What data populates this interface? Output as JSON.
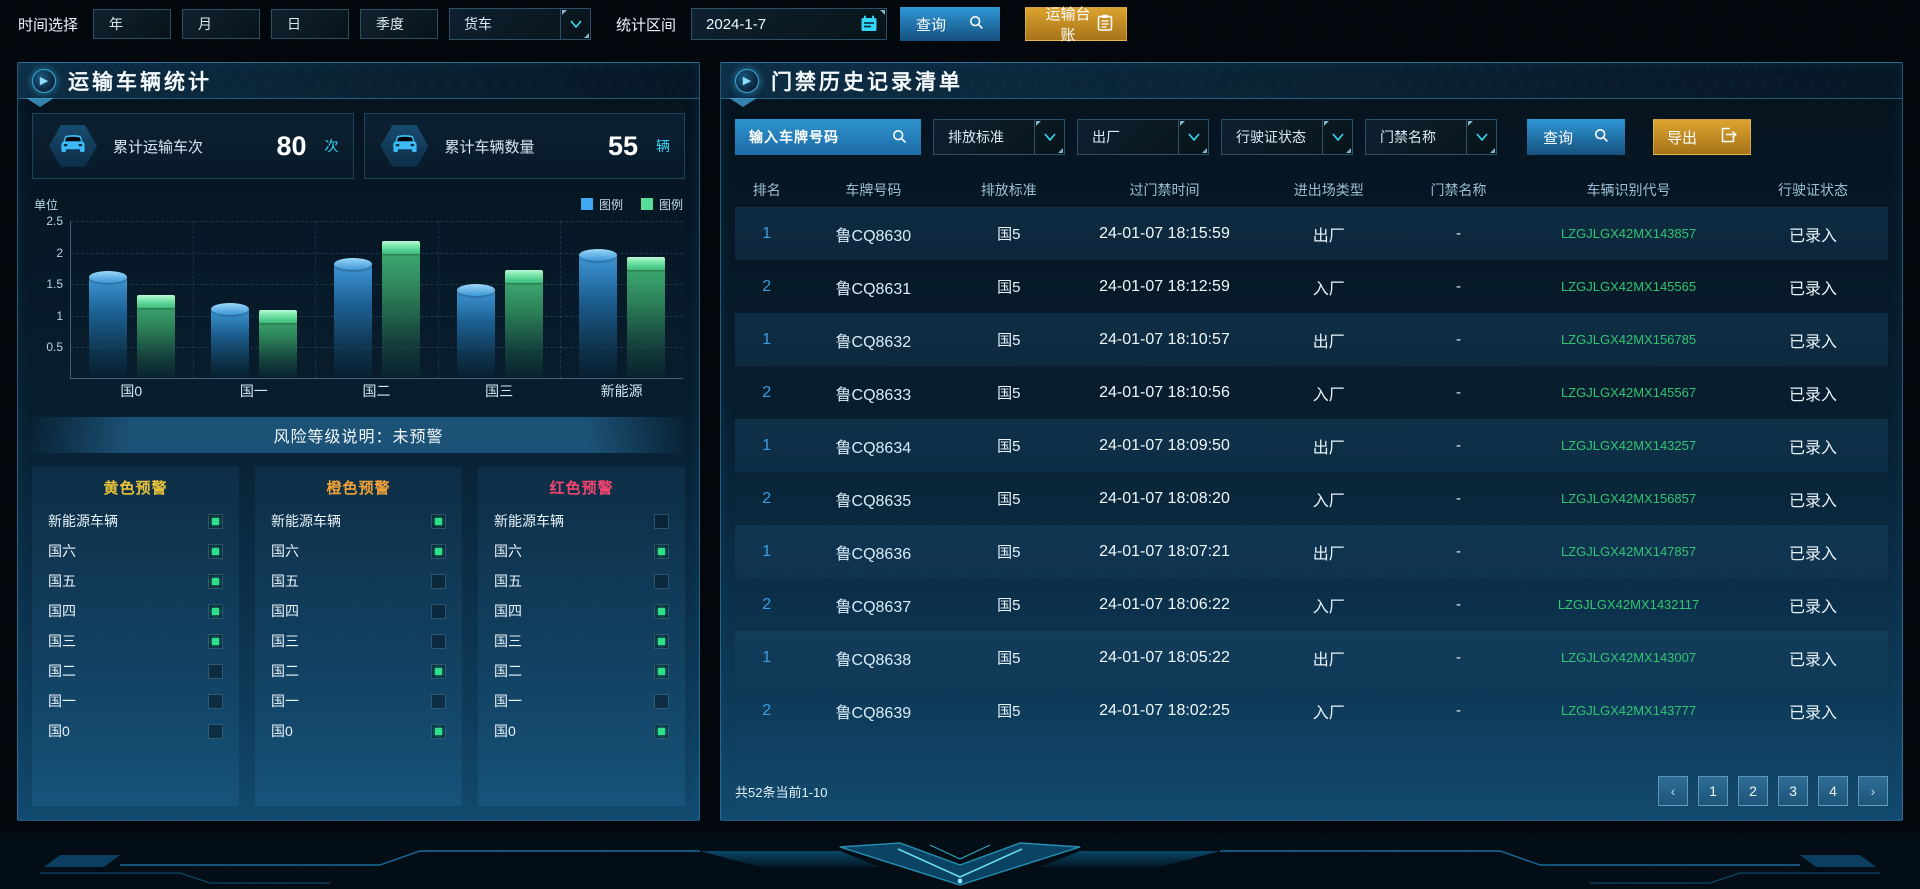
{
  "topbar": {
    "time_label": "时间选择",
    "range_buttons": [
      "年",
      "月",
      "日",
      "季度"
    ],
    "vehicle_type": "货车",
    "interval_label": "统计区间",
    "date_value": "2024-1-7",
    "query_label": "查询",
    "ledger_label": "运输台账"
  },
  "left_panel": {
    "title": "运输车辆统计",
    "stats": [
      {
        "label": "累计运输车次",
        "value": "80",
        "unit": "次"
      },
      {
        "label": "累计车辆数量",
        "value": "55",
        "unit": "辆"
      }
    ],
    "risk_banner": "风险等级说明：未预警",
    "warning_item_labels": [
      "新能源车辆",
      "国六",
      "国五",
      "国四",
      "国三",
      "国二",
      "国一",
      "国0"
    ],
    "warning_panels": [
      {
        "title": "黄色预警",
        "color": "#e8c23a",
        "checked": [
          true,
          true,
          true,
          true,
          true,
          false,
          false,
          false
        ]
      },
      {
        "title": "橙色预警",
        "color": "#f0a236",
        "checked": [
          true,
          true,
          false,
          false,
          false,
          true,
          false,
          true
        ]
      },
      {
        "title": "红色预警",
        "color": "#f5446e",
        "checked": [
          false,
          true,
          false,
          true,
          true,
          true,
          false,
          true
        ]
      }
    ]
  },
  "chart_data": {
    "type": "bar",
    "title": "",
    "xlabel": "",
    "ylabel": "单位",
    "categories": [
      "国0",
      "国一",
      "国二",
      "国三",
      "新能源"
    ],
    "series": [
      {
        "name": "图例",
        "color": "#41a7f0",
        "values": [
          1.6,
          1.1,
          1.8,
          1.4,
          1.95
        ]
      },
      {
        "name": "图例",
        "color": "#57dd9a",
        "values": [
          1.2,
          0.97,
          2.05,
          1.6,
          1.8
        ]
      }
    ],
    "ylim": [
      0,
      2.5
    ],
    "yticks": [
      0.5,
      1,
      1.5,
      2,
      2.5
    ],
    "grid": true,
    "legend_position": "top-right"
  },
  "right_panel": {
    "title": "门禁历史记录清单",
    "filters": {
      "plate_placeholder": "输入车牌号码",
      "dropdowns": [
        "排放标准",
        "出厂",
        "行驶证状态",
        "门禁名称"
      ],
      "query_label": "查询",
      "export_label": "导出"
    },
    "table": {
      "headers": [
        "排名",
        "车牌号码",
        "排放标准",
        "过门禁时间",
        "进出场类型",
        "门禁名称",
        "车辆识别代号",
        "行驶证状态"
      ],
      "rows": [
        [
          "1",
          "鲁CQ8630",
          "国5",
          "24-01-07 18:15:59",
          "出厂",
          "-",
          "LZGJLGX42MX143857",
          "已录入"
        ],
        [
          "2",
          "鲁CQ8631",
          "国5",
          "24-01-07 18:12:59",
          "入厂",
          "-",
          "LZGJLGX42MX145565",
          "已录入"
        ],
        [
          "1",
          "鲁CQ8632",
          "国5",
          "24-01-07 18:10:57",
          "出厂",
          "-",
          "LZGJLGX42MX156785",
          "已录入"
        ],
        [
          "2",
          "鲁CQ8633",
          "国5",
          "24-01-07 18:10:56",
          "入厂",
          "-",
          "LZGJLGX42MX145567",
          "已录入"
        ],
        [
          "1",
          "鲁CQ8634",
          "国5",
          "24-01-07 18:09:50",
          "出厂",
          "-",
          "LZGJLGX42MX143257",
          "已录入"
        ],
        [
          "2",
          "鲁CQ8635",
          "国5",
          "24-01-07 18:08:20",
          "入厂",
          "-",
          "LZGJLGX42MX156857",
          "已录入"
        ],
        [
          "1",
          "鲁CQ8636",
          "国5",
          "24-01-07 18:07:21",
          "出厂",
          "-",
          "LZGJLGX42MX147857",
          "已录入"
        ],
        [
          "2",
          "鲁CQ8637",
          "国5",
          "24-01-07 18:06:22",
          "入厂",
          "-",
          "LZGJLGX42MX1432117",
          "已录入"
        ],
        [
          "1",
          "鲁CQ8638",
          "国5",
          "24-01-07 18:05:22",
          "出厂",
          "-",
          "LZGJLGX42MX143007",
          "已录入"
        ],
        [
          "2",
          "鲁CQ8639",
          "国5",
          "24-01-07 18:02:25",
          "入厂",
          "-",
          "LZGJLGX42MX143777",
          "已录入"
        ]
      ]
    },
    "pagination": {
      "summary": "共52条当前1-10",
      "prev": "‹",
      "pages": [
        "1",
        "2",
        "3",
        "4"
      ],
      "next": "›"
    }
  },
  "colors": {
    "accent_cyan": "#35d6f5",
    "accent_blue": "#2f97d6",
    "accent_gold": "#d99f2b",
    "vin_green": "#31c472",
    "rank_blue": "#3d9ede",
    "warn_yellow": "#e8c23a",
    "warn_orange": "#f0a236",
    "warn_red": "#f5446e"
  }
}
